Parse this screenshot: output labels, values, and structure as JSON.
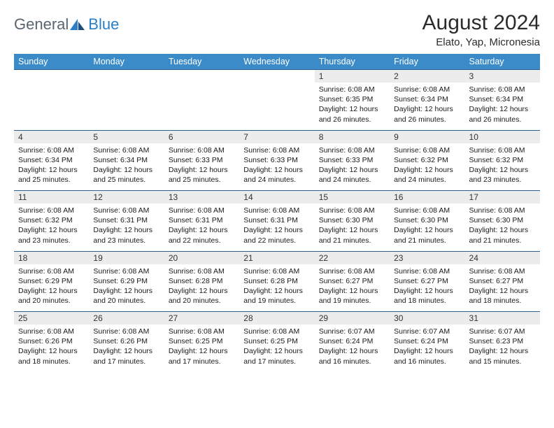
{
  "logo": {
    "text1": "General",
    "text2": "Blue"
  },
  "title": "August 2024",
  "location": "Elato, Yap, Micronesia",
  "header_color": "#3b8bc9",
  "border_color": "#2d5f8f",
  "daynum_bg": "#ececec",
  "days": [
    "Sunday",
    "Monday",
    "Tuesday",
    "Wednesday",
    "Thursday",
    "Friday",
    "Saturday"
  ],
  "weeks": [
    [
      null,
      null,
      null,
      null,
      {
        "n": "1",
        "sr": "6:08 AM",
        "ss": "6:35 PM",
        "dl": "12 hours and 26 minutes."
      },
      {
        "n": "2",
        "sr": "6:08 AM",
        "ss": "6:34 PM",
        "dl": "12 hours and 26 minutes."
      },
      {
        "n": "3",
        "sr": "6:08 AM",
        "ss": "6:34 PM",
        "dl": "12 hours and 26 minutes."
      }
    ],
    [
      {
        "n": "4",
        "sr": "6:08 AM",
        "ss": "6:34 PM",
        "dl": "12 hours and 25 minutes."
      },
      {
        "n": "5",
        "sr": "6:08 AM",
        "ss": "6:34 PM",
        "dl": "12 hours and 25 minutes."
      },
      {
        "n": "6",
        "sr": "6:08 AM",
        "ss": "6:33 PM",
        "dl": "12 hours and 25 minutes."
      },
      {
        "n": "7",
        "sr": "6:08 AM",
        "ss": "6:33 PM",
        "dl": "12 hours and 24 minutes."
      },
      {
        "n": "8",
        "sr": "6:08 AM",
        "ss": "6:33 PM",
        "dl": "12 hours and 24 minutes."
      },
      {
        "n": "9",
        "sr": "6:08 AM",
        "ss": "6:32 PM",
        "dl": "12 hours and 24 minutes."
      },
      {
        "n": "10",
        "sr": "6:08 AM",
        "ss": "6:32 PM",
        "dl": "12 hours and 23 minutes."
      }
    ],
    [
      {
        "n": "11",
        "sr": "6:08 AM",
        "ss": "6:32 PM",
        "dl": "12 hours and 23 minutes."
      },
      {
        "n": "12",
        "sr": "6:08 AM",
        "ss": "6:31 PM",
        "dl": "12 hours and 23 minutes."
      },
      {
        "n": "13",
        "sr": "6:08 AM",
        "ss": "6:31 PM",
        "dl": "12 hours and 22 minutes."
      },
      {
        "n": "14",
        "sr": "6:08 AM",
        "ss": "6:31 PM",
        "dl": "12 hours and 22 minutes."
      },
      {
        "n": "15",
        "sr": "6:08 AM",
        "ss": "6:30 PM",
        "dl": "12 hours and 21 minutes."
      },
      {
        "n": "16",
        "sr": "6:08 AM",
        "ss": "6:30 PM",
        "dl": "12 hours and 21 minutes."
      },
      {
        "n": "17",
        "sr": "6:08 AM",
        "ss": "6:30 PM",
        "dl": "12 hours and 21 minutes."
      }
    ],
    [
      {
        "n": "18",
        "sr": "6:08 AM",
        "ss": "6:29 PM",
        "dl": "12 hours and 20 minutes."
      },
      {
        "n": "19",
        "sr": "6:08 AM",
        "ss": "6:29 PM",
        "dl": "12 hours and 20 minutes."
      },
      {
        "n": "20",
        "sr": "6:08 AM",
        "ss": "6:28 PM",
        "dl": "12 hours and 20 minutes."
      },
      {
        "n": "21",
        "sr": "6:08 AM",
        "ss": "6:28 PM",
        "dl": "12 hours and 19 minutes."
      },
      {
        "n": "22",
        "sr": "6:08 AM",
        "ss": "6:27 PM",
        "dl": "12 hours and 19 minutes."
      },
      {
        "n": "23",
        "sr": "6:08 AM",
        "ss": "6:27 PM",
        "dl": "12 hours and 18 minutes."
      },
      {
        "n": "24",
        "sr": "6:08 AM",
        "ss": "6:27 PM",
        "dl": "12 hours and 18 minutes."
      }
    ],
    [
      {
        "n": "25",
        "sr": "6:08 AM",
        "ss": "6:26 PM",
        "dl": "12 hours and 18 minutes."
      },
      {
        "n": "26",
        "sr": "6:08 AM",
        "ss": "6:26 PM",
        "dl": "12 hours and 17 minutes."
      },
      {
        "n": "27",
        "sr": "6:08 AM",
        "ss": "6:25 PM",
        "dl": "12 hours and 17 minutes."
      },
      {
        "n": "28",
        "sr": "6:08 AM",
        "ss": "6:25 PM",
        "dl": "12 hours and 17 minutes."
      },
      {
        "n": "29",
        "sr": "6:07 AM",
        "ss": "6:24 PM",
        "dl": "12 hours and 16 minutes."
      },
      {
        "n": "30",
        "sr": "6:07 AM",
        "ss": "6:24 PM",
        "dl": "12 hours and 16 minutes."
      },
      {
        "n": "31",
        "sr": "6:07 AM",
        "ss": "6:23 PM",
        "dl": "12 hours and 15 minutes."
      }
    ]
  ],
  "labels": {
    "sunrise": "Sunrise:",
    "sunset": "Sunset:",
    "daylight": "Daylight:"
  }
}
